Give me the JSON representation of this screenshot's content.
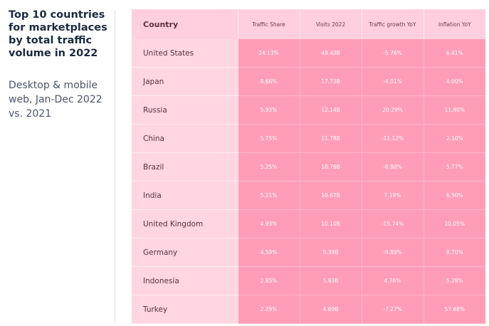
{
  "panel": {
    "title": "Top 10 countries for marketplaces by total traffic volume in 2022",
    "subtitle": "Desktop & mobile web, Jan-Dec 2022 vs. 2021"
  },
  "chart_data": {
    "type": "table",
    "columns": [
      "Country",
      "Traffic Share",
      "Visits 2022",
      "Traffic growth YoY",
      "Inflation YoY"
    ],
    "rows": [
      {
        "country": "United States",
        "traffic_share": "24.13%",
        "visits_2022": "49.40B",
        "traffic_growth_yoy": "-5.76%",
        "inflation_yoy": "6.41%"
      },
      {
        "country": "Japan",
        "traffic_share": "8.66%",
        "visits_2022": "17.73B",
        "traffic_growth_yoy": "-4.01%",
        "inflation_yoy": "4.00%"
      },
      {
        "country": "Russia",
        "traffic_share": "5.93%",
        "visits_2022": "12.14B",
        "traffic_growth_yoy": "20.29%",
        "inflation_yoy": "11.80%"
      },
      {
        "country": "China",
        "traffic_share": "5.75%",
        "visits_2022": "11.78B",
        "traffic_growth_yoy": "-11.12%",
        "inflation_yoy": "2.10%"
      },
      {
        "country": "Brazil",
        "traffic_share": "5.25%",
        "visits_2022": "10.76B",
        "traffic_growth_yoy": "-8.80%",
        "inflation_yoy": "5.77%"
      },
      {
        "country": "India",
        "traffic_share": "5.21%",
        "visits_2022": "10.67B",
        "traffic_growth_yoy": "7.19%",
        "inflation_yoy": "6.50%"
      },
      {
        "country": "United Kingdom",
        "traffic_share": "4.93%",
        "visits_2022": "10.10B",
        "traffic_growth_yoy": "-15.74%",
        "inflation_yoy": "10.05%"
      },
      {
        "country": "Germany",
        "traffic_share": "4.59%",
        "visits_2022": "9.39B",
        "traffic_growth_yoy": "-9.89%",
        "inflation_yoy": "8.70%"
      },
      {
        "country": "Indonesia",
        "traffic_share": "2.85%",
        "visits_2022": "5.83B",
        "traffic_growth_yoy": "4.76%",
        "inflation_yoy": "5.28%"
      },
      {
        "country": "Turkey",
        "traffic_share": "2.29%",
        "visits_2022": "4.69B",
        "traffic_growth_yoy": "-7.27%",
        "inflation_yoy": "57.68%"
      }
    ]
  },
  "colors": {
    "header_bg": "#ffcfdf",
    "country_bg": "#ffd6e2",
    "value_bg": "#ff9db7",
    "title_text": "#1c2a3f"
  }
}
